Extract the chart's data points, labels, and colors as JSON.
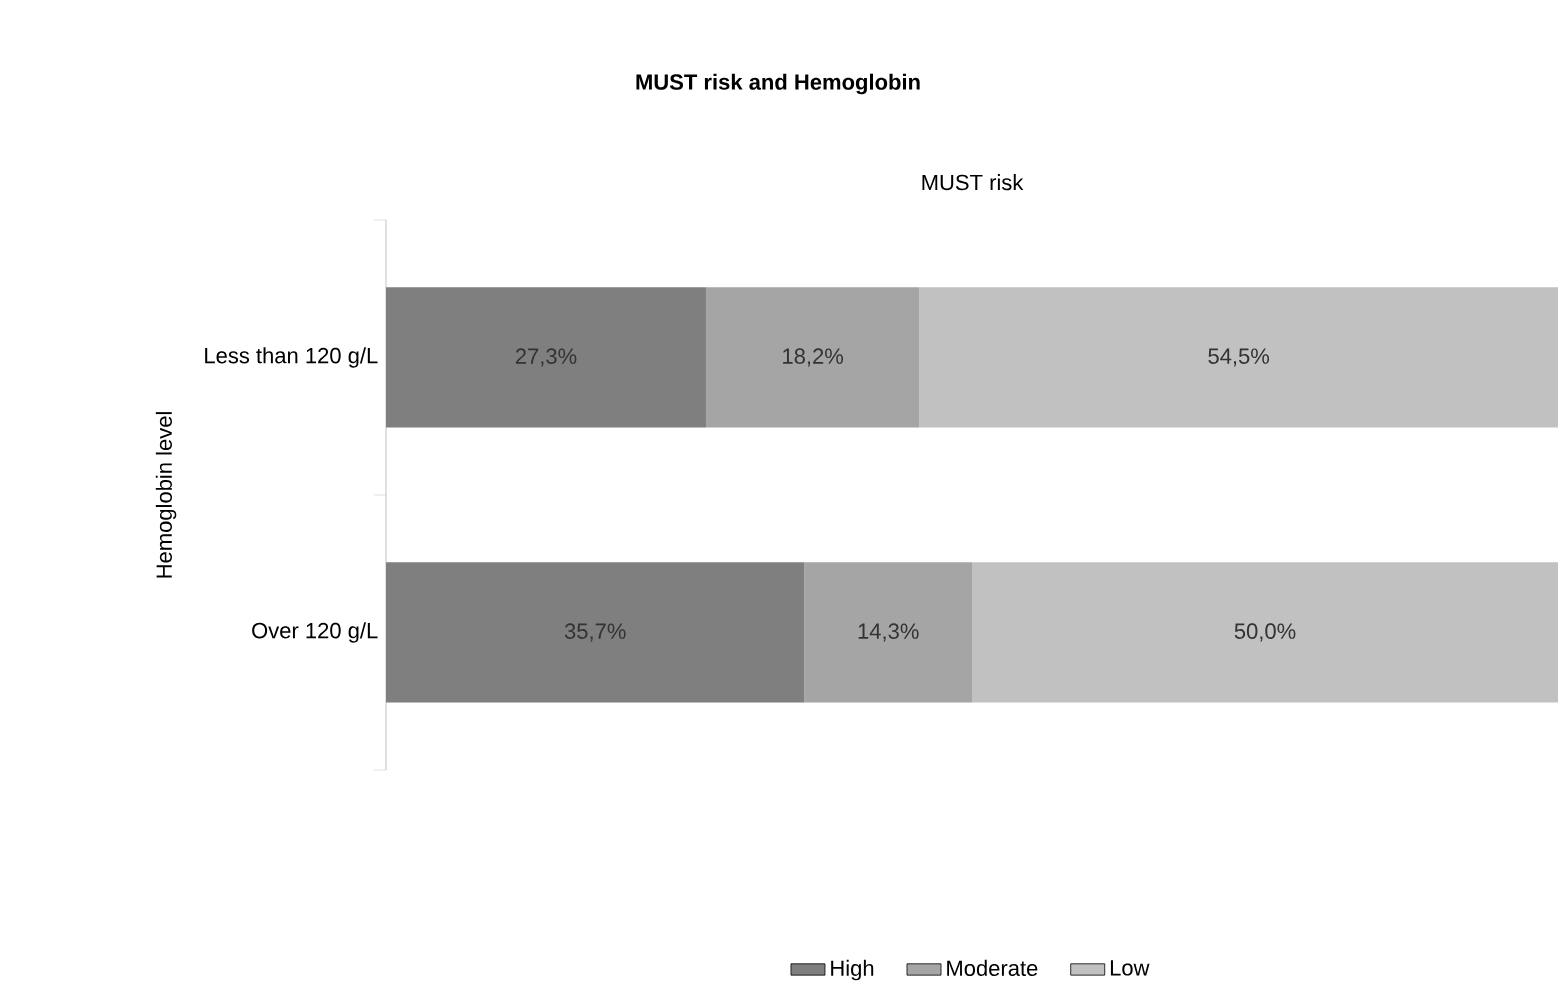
{
  "chart_data": {
    "type": "bar",
    "orientation": "horizontal",
    "stacked": true,
    "title": "MUST risk and Hemoglobin",
    "xlabel": "MUST risk",
    "ylabel": "Hemoglobin level",
    "categories": [
      "Less than 120 g/L",
      "Over 120 g/L"
    ],
    "xlim": [
      0,
      100
    ],
    "tick_labels": "y",
    "legend": "bottom",
    "series": [
      {
        "name": "High",
        "color": "#7f7f7f",
        "values": [
          27.3,
          35.7
        ],
        "value_labels": [
          "27,3%",
          "35,7%"
        ]
      },
      {
        "name": "Moderate",
        "color": "#a5a5a5",
        "values": [
          18.2,
          14.3
        ],
        "value_labels": [
          "18,2%",
          "14,3%"
        ]
      },
      {
        "name": "Low",
        "color": "#c1c1c1",
        "values": [
          54.5,
          50.0
        ],
        "value_labels": [
          "54,5%",
          "50,0%"
        ]
      }
    ]
  }
}
